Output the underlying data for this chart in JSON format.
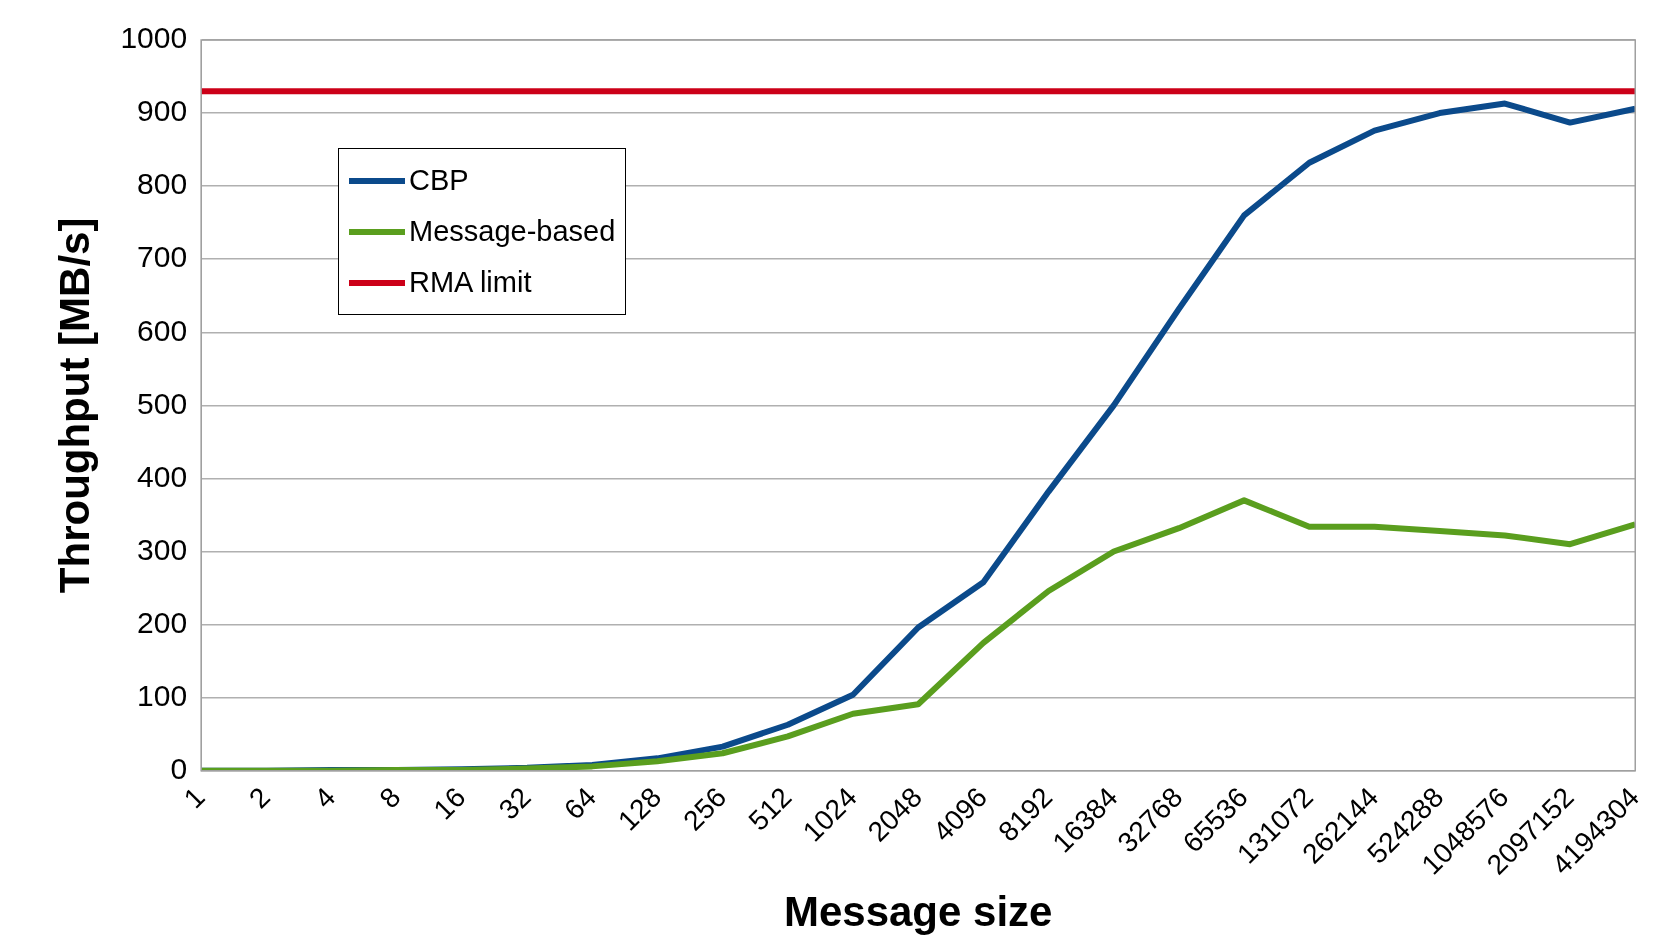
{
  "chart_data": {
    "type": "line",
    "xlabel": "Message size",
    "ylabel": "Throughput [MB/s]",
    "categories": [
      "1",
      "2",
      "4",
      "8",
      "16",
      "32",
      "64",
      "128",
      "256",
      "512",
      "1024",
      "2048",
      "4096",
      "8192",
      "16384",
      "32768",
      "65536",
      "131072",
      "262144",
      "524288",
      "1048576",
      "2097152",
      "4194304"
    ],
    "series": [
      {
        "name": "CBP",
        "color": "#0b4a8b",
        "values": [
          0,
          0,
          1,
          1,
          2,
          4,
          8,
          17,
          33,
          63,
          104,
          196,
          258,
          382,
          500,
          632,
          760,
          832,
          876,
          900,
          913,
          887,
          906
        ]
      },
      {
        "name": "Message-based",
        "color": "#5a9e1e",
        "values": [
          0,
          0,
          0,
          1,
          1,
          3,
          6,
          13,
          24,
          47,
          78,
          91,
          175,
          246,
          300,
          332,
          370,
          334,
          334,
          328,
          322,
          310,
          337
        ]
      },
      {
        "name": "RMA limit",
        "color": "#cc0018",
        "values": [
          930,
          930,
          930,
          930,
          930,
          930,
          930,
          930,
          930,
          930,
          930,
          930,
          930,
          930,
          930,
          930,
          930,
          930,
          930,
          930,
          930,
          930,
          930
        ]
      }
    ],
    "ylim": [
      0,
      1000
    ],
    "yticks": [
      0,
      100,
      200,
      300,
      400,
      500,
      600,
      700,
      800,
      900,
      1000
    ],
    "grid": "y",
    "legend": "top left",
    "marker": "none",
    "line_style": "solid"
  }
}
